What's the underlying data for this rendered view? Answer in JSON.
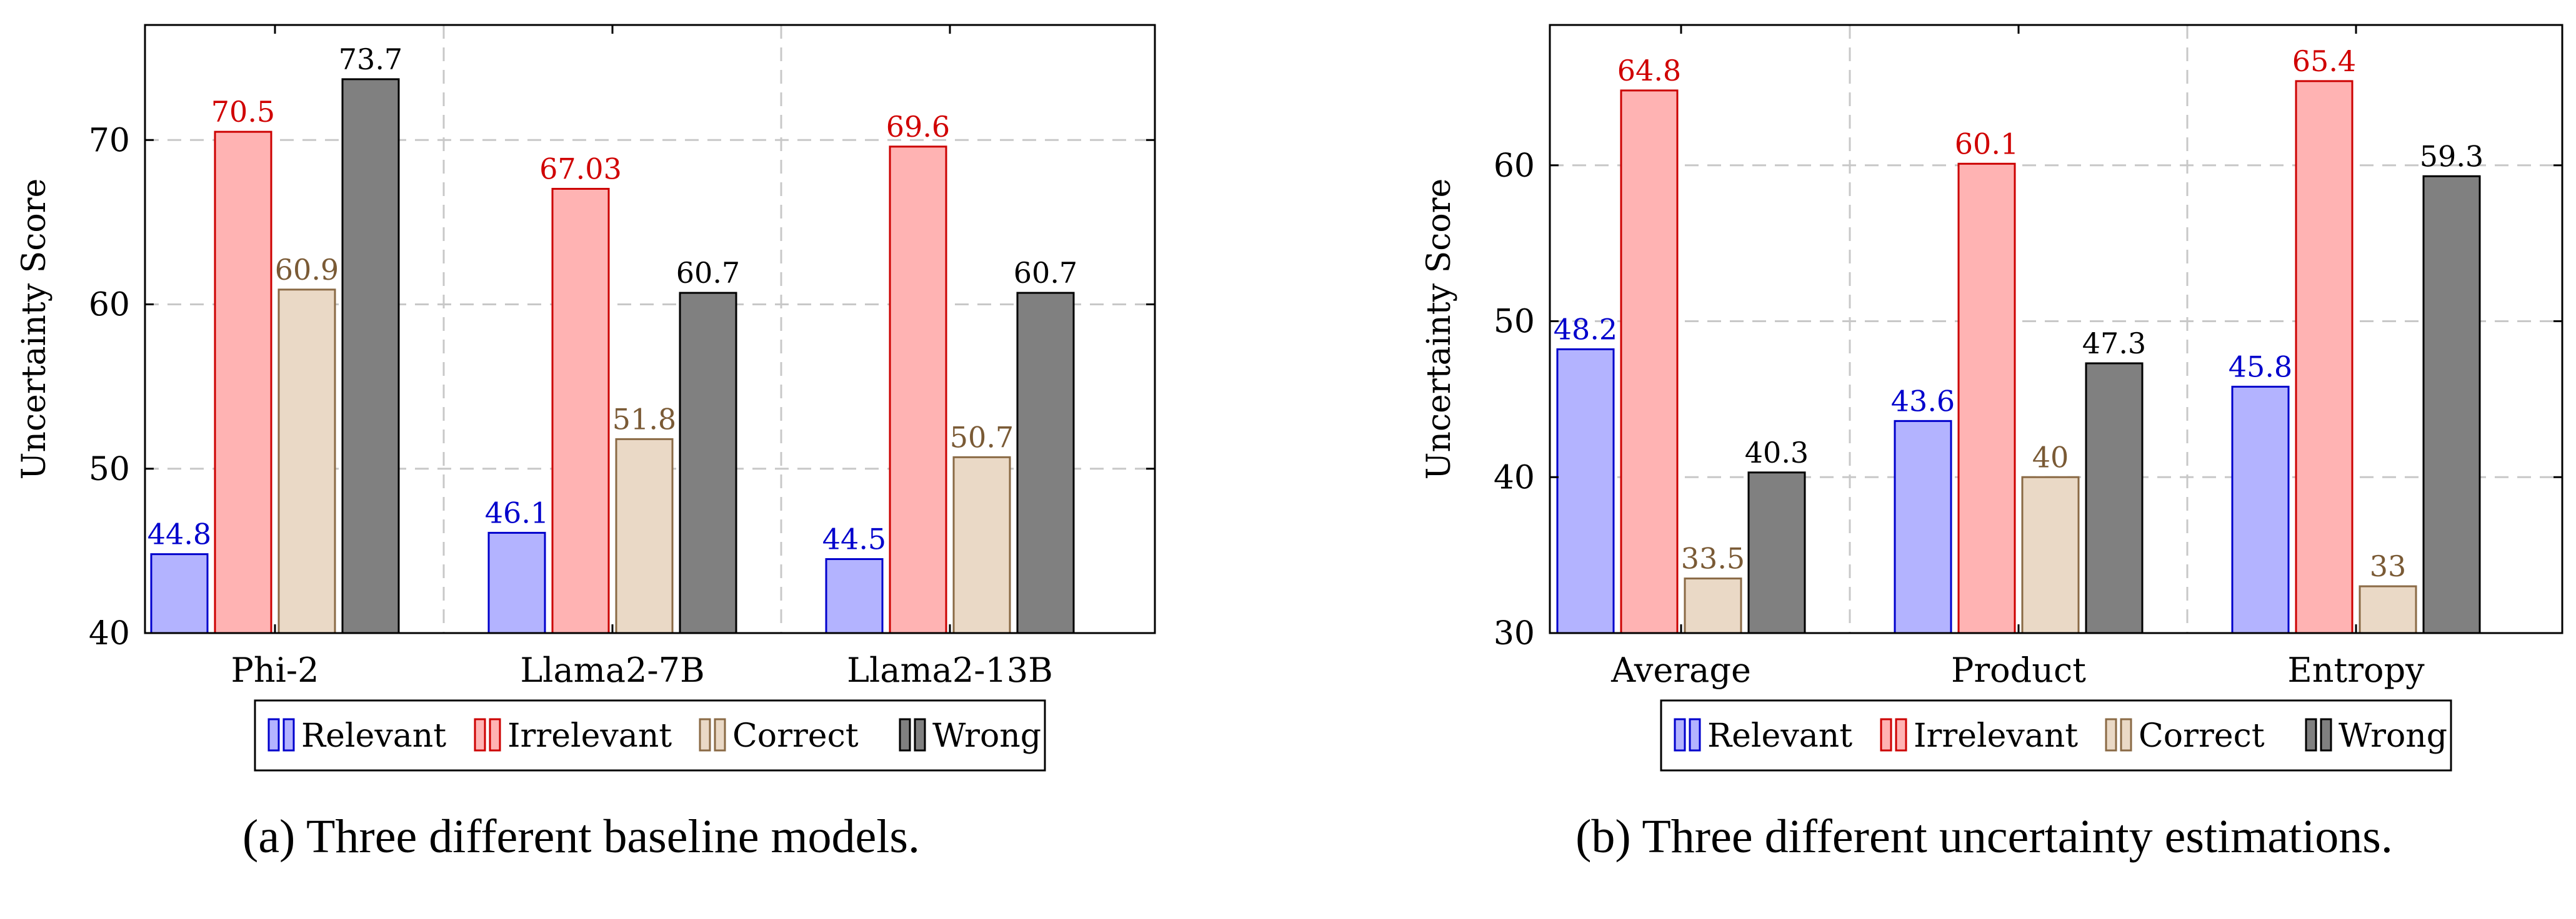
{
  "colors": {
    "relevant_fill": "#b3b3ff",
    "relevant_stroke": "#0000cc",
    "relevant_label": "#0000cc",
    "irrelevant_fill": "#ffb3b3",
    "irrelevant_stroke": "#cc0000",
    "irrelevant_label": "#d00000",
    "correct_fill": "#ead9c6",
    "correct_stroke": "#8a6a45",
    "correct_label": "#7a5a35",
    "wrong_fill": "#808080",
    "wrong_stroke": "#000000",
    "wrong_label": "#000000"
  },
  "chart_data": [
    {
      "type": "bar",
      "caption": "(a) Three different baseline models.",
      "ylabel": "Uncertainty Score",
      "ylim": [
        40,
        77
      ],
      "yticks": [
        40,
        50,
        60,
        70
      ],
      "grid": true,
      "legend_position": "bottom",
      "categories": [
        "Phi-2",
        "Llama2-7B",
        "Llama2-13B"
      ],
      "series": [
        {
          "name": "Relevant",
          "values": [
            44.8,
            46.1,
            44.5
          ],
          "labels": [
            "44.8",
            "46.1",
            "44.5"
          ]
        },
        {
          "name": "Irrelevant",
          "values": [
            70.5,
            67.03,
            69.6
          ],
          "labels": [
            "70.5",
            "67.03",
            "69.6"
          ]
        },
        {
          "name": "Correct",
          "values": [
            60.9,
            51.8,
            50.7
          ],
          "labels": [
            "60.9",
            "51.8",
            "50.7"
          ]
        },
        {
          "name": "Wrong",
          "values": [
            73.7,
            60.7,
            60.7
          ],
          "labels": [
            "73.7",
            "60.7",
            "60.7"
          ]
        }
      ]
    },
    {
      "type": "bar",
      "caption": "(b) Three different uncertainty estimations.",
      "ylabel": "Uncertainty Score",
      "ylim": [
        30,
        69
      ],
      "yticks": [
        30,
        40,
        50,
        60
      ],
      "grid": true,
      "legend_position": "bottom",
      "categories": [
        "Average",
        "Product",
        "Entropy"
      ],
      "series": [
        {
          "name": "Relevant",
          "values": [
            48.2,
            43.6,
            45.8
          ],
          "labels": [
            "48.2",
            "43.6",
            "45.8"
          ]
        },
        {
          "name": "Irrelevant",
          "values": [
            64.8,
            60.1,
            65.4
          ],
          "labels": [
            "64.8",
            "60.1",
            "65.4"
          ]
        },
        {
          "name": "Correct",
          "values": [
            33.5,
            40,
            33
          ],
          "labels": [
            "33.5",
            "40",
            "33"
          ]
        },
        {
          "name": "Wrong",
          "values": [
            40.3,
            47.3,
            59.3
          ],
          "labels": [
            "40.3",
            "47.3",
            "59.3"
          ]
        }
      ]
    }
  ]
}
